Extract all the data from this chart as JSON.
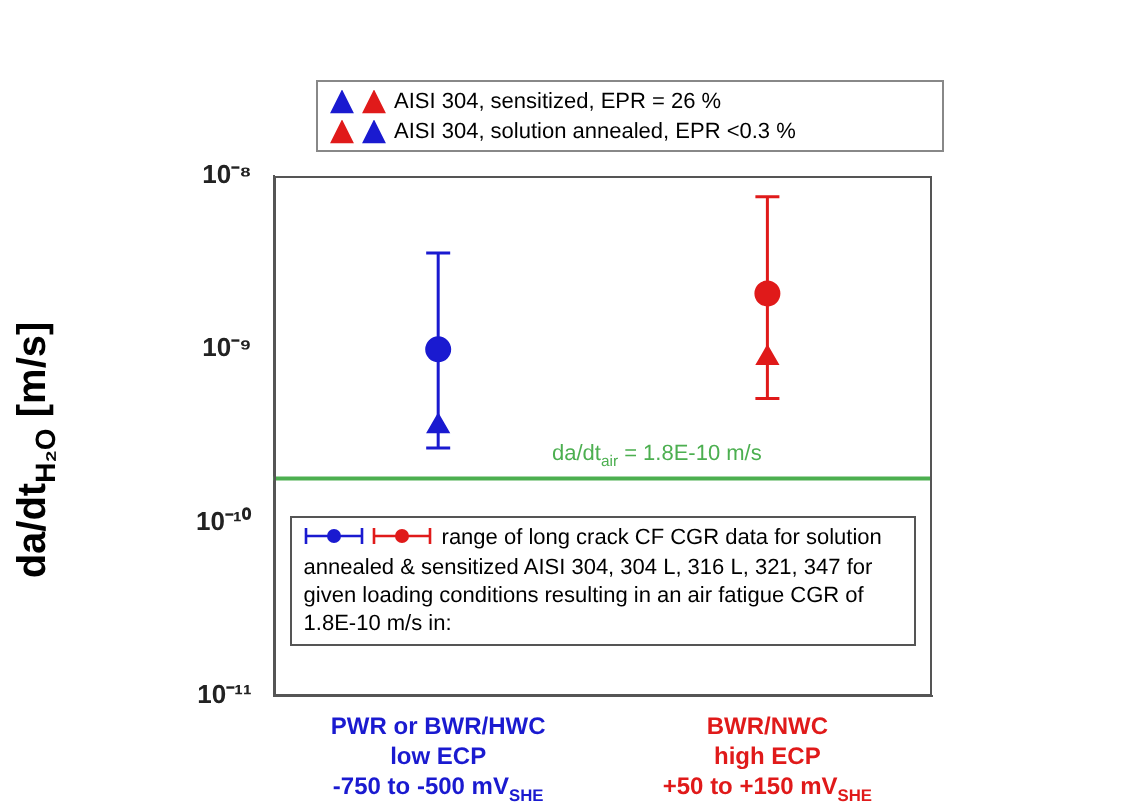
{
  "chart_data": {
    "type": "scatter",
    "categories": [
      "PWR or BWR/HWC\nlow ECP\n-750 to -500 mV$_{SHE}$",
      "BWR/NWC\nhigh ECP\n+50 to +150 mV$_{SHE}$"
    ],
    "ylabel": "da/dt$_{H₂O}$ [m/s]",
    "log": "y",
    "ylim": [
      1e-11,
      1e-08
    ],
    "yticks": [
      {
        "value": 1e-11,
        "label": "10⁻¹¹"
      },
      {
        "value": 1e-10,
        "label": "10⁻¹⁰"
      },
      {
        "value": 1e-09,
        "label": "10⁻⁹"
      },
      {
        "value": 1e-08,
        "label": "10⁻⁸"
      }
    ],
    "grid": false,
    "legend": "top",
    "marker": "circle",
    "series": [
      {
        "colors": [
          "#1a1ad0",
          "#e01a1a"
        ],
        "values": [
          1e-09,
          2.1e-09
        ],
        "errors": [
          [
            2.7e-10,
            3.6e-09
          ],
          [
            5.2e-10,
            7.6e-09
          ]
        ]
      },
      {
        "name": "AISI 304, sensitized, EPR = 26 %",
        "colors": [
          "#1a1ad0",
          "#e01a1a"
        ],
        "marker": "triangle",
        "values": [
          null,
          8.9e-10
        ]
      },
      {
        "name": "AISI 304, solution annealed, EPR <0.3 %",
        "colors": [
          "#1a1ad0",
          "#e01a1a"
        ],
        "marker": "triangle",
        "values": [
          3.6e-10,
          null
        ]
      }
    ],
    "ref_lines": [
      {
        "axis": "y",
        "value": 1.8e-10,
        "color": "#4caf50"
      }
    ],
    "annotations": [
      "da/dt$_{air}$ = 1.8E-10 m/s",
      "range of long crack CF CGR data for solution annealed & sensitized AISI 304, 304 L, 316 L, 321, 347 for given loading conditions resulting in an air fatigue CGR of 1.8E-10 m/s in:"
    ]
  }
}
